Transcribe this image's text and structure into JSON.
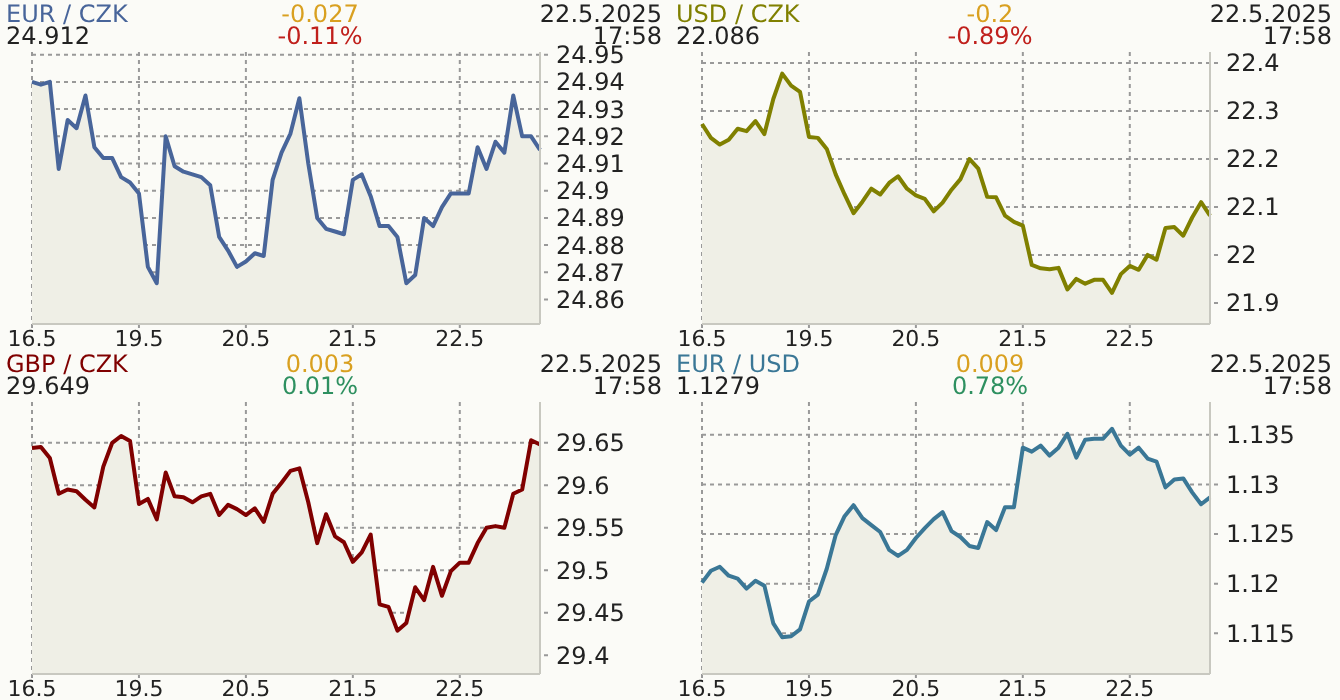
{
  "chart_data": [
    {
      "type": "area",
      "title": "EUR / CZK",
      "subtitle": "24.912",
      "annotations": [
        "-0.027",
        "-0.11%",
        "22.5.2025",
        "17:58"
      ],
      "categories": [
        "16.5",
        null,
        null,
        null,
        null,
        null,
        null,
        null,
        null,
        null,
        null,
        null,
        "19.5",
        null,
        null,
        null,
        null,
        null,
        null,
        null,
        null,
        null,
        null,
        null,
        "20.5",
        null,
        null,
        null,
        null,
        null,
        null,
        null,
        null,
        null,
        null,
        null,
        "21.5",
        null,
        null,
        null,
        null,
        null,
        null,
        null,
        null,
        null,
        null,
        null,
        "22.5",
        null,
        null,
        null,
        null,
        null,
        null,
        null,
        null,
        null
      ],
      "ylim": [
        24.851,
        24.951
      ],
      "yticks": [
        24.86,
        24.87,
        24.88,
        24.89,
        {
          "value": 24.9,
          "label": "24.9"
        },
        24.91,
        24.92,
        24.93,
        24.94,
        24.95
      ],
      "grid": true,
      "series": [
        {
          "color": "#48659a",
          "values": [
            24.94,
            24.939,
            24.94,
            24.908,
            24.926,
            24.923,
            24.935,
            24.916,
            24.912,
            24.912,
            24.905,
            24.903,
            24.899,
            24.872,
            24.866,
            24.92,
            24.909,
            24.907,
            24.906,
            24.905,
            24.902,
            24.883,
            24.878,
            24.872,
            24.874,
            24.877,
            24.876,
            24.904,
            24.914,
            24.921,
            24.934,
            24.91,
            24.89,
            24.886,
            24.885,
            24.884,
            24.904,
            24.906,
            24.898,
            24.887,
            24.887,
            24.883,
            24.866,
            24.869,
            24.89,
            24.887,
            24.894,
            24.899,
            24.899,
            24.899,
            24.916,
            24.908,
            24.918,
            24.914,
            24.935,
            24.92,
            24.92,
            24.915
          ]
        }
      ]
    },
    {
      "type": "area",
      "title": "USD / CZK",
      "subtitle": "22.086",
      "annotations": [
        "-0.2",
        "-0.89%",
        "22.5.2025",
        "17:58"
      ],
      "categories": [
        "16.5",
        null,
        null,
        null,
        null,
        null,
        null,
        null,
        null,
        null,
        null,
        null,
        "19.5",
        null,
        null,
        null,
        null,
        null,
        null,
        null,
        null,
        null,
        null,
        null,
        "20.5",
        null,
        null,
        null,
        null,
        null,
        null,
        null,
        null,
        null,
        null,
        null,
        "21.5",
        null,
        null,
        null,
        null,
        null,
        null,
        null,
        null,
        null,
        null,
        null,
        "22.5",
        null,
        null,
        null,
        null,
        null,
        null,
        null,
        null,
        null
      ],
      "ylim": [
        21.856,
        22.423
      ],
      "yticks": [
        21.9,
        {
          "value": 22,
          "label": "22"
        },
        22.1,
        22.2,
        22.3,
        22.4
      ],
      "grid": true,
      "series": [
        {
          "color": "#808000",
          "values": [
            22.273,
            22.244,
            22.23,
            22.24,
            22.263,
            22.258,
            22.279,
            22.252,
            22.325,
            22.378,
            22.353,
            22.34,
            22.246,
            22.244,
            22.221,
            22.168,
            22.126,
            22.087,
            22.111,
            22.138,
            22.126,
            22.15,
            22.164,
            22.138,
            22.124,
            22.117,
            22.091,
            22.109,
            22.136,
            22.158,
            22.2,
            22.18,
            22.121,
            22.12,
            22.082,
            22.069,
            22.061,
            21.979,
            21.972,
            21.97,
            21.973,
            21.928,
            21.95,
            21.94,
            21.948,
            21.948,
            21.921,
            21.96,
            21.977,
            21.969,
            22.0,
            21.99,
            22.056,
            22.058,
            22.04,
            22.078,
            22.11,
            22.082
          ]
        }
      ]
    },
    {
      "type": "area",
      "title": "GBP / CZK",
      "subtitle": "29.649",
      "annotations": [
        "0.003",
        "0.01%",
        "22.5.2025",
        "17:58"
      ],
      "categories": [
        "16.5",
        null,
        null,
        null,
        null,
        null,
        null,
        null,
        null,
        null,
        null,
        null,
        "19.5",
        null,
        null,
        null,
        null,
        null,
        null,
        null,
        null,
        null,
        null,
        null,
        "20.5",
        null,
        null,
        null,
        null,
        null,
        null,
        null,
        null,
        null,
        null,
        null,
        "21.5",
        null,
        null,
        null,
        null,
        null,
        null,
        null,
        null,
        null,
        null,
        null,
        "22.5",
        null,
        null,
        null,
        null,
        null,
        null,
        null,
        null,
        null
      ],
      "ylim": [
        29.378,
        29.698
      ],
      "yticks": [
        {
          "value": 29.4,
          "label": "29.4"
        },
        29.45,
        {
          "value": 29.5,
          "label": "29.5"
        },
        29.55,
        {
          "value": 29.6,
          "label": "29.6"
        },
        29.65
      ],
      "grid": true,
      "series": [
        {
          "color": "#800000",
          "values": [
            29.644,
            29.645,
            29.632,
            29.59,
            29.595,
            29.593,
            29.583,
            29.574,
            29.622,
            29.65,
            29.658,
            29.652,
            29.578,
            29.584,
            29.56,
            29.615,
            29.587,
            29.586,
            29.58,
            29.587,
            29.59,
            29.565,
            29.577,
            29.572,
            29.565,
            29.573,
            29.557,
            29.59,
            29.603,
            29.617,
            29.62,
            29.58,
            29.532,
            29.566,
            29.54,
            29.533,
            29.51,
            29.521,
            29.542,
            29.46,
            29.457,
            29.429,
            29.438,
            29.48,
            29.465,
            29.504,
            29.47,
            29.499,
            29.509,
            29.509,
            29.532,
            29.55,
            29.552,
            29.55,
            29.59,
            29.595,
            29.653,
            29.648
          ]
        }
      ]
    },
    {
      "type": "area",
      "title": "EUR / USD",
      "subtitle": "1.1279",
      "annotations": [
        "0.009",
        "0.78%",
        "22.5.2025",
        "17:58"
      ],
      "categories": [
        "16.5",
        null,
        null,
        null,
        null,
        null,
        null,
        null,
        null,
        null,
        null,
        null,
        "19.5",
        null,
        null,
        null,
        null,
        null,
        null,
        null,
        null,
        null,
        null,
        null,
        "20.5",
        null,
        null,
        null,
        null,
        null,
        null,
        null,
        null,
        null,
        null,
        null,
        "21.5",
        null,
        null,
        null,
        null,
        null,
        null,
        null,
        null,
        null,
        null,
        null,
        "22.5",
        null,
        null,
        null,
        null,
        null,
        null,
        null,
        null,
        null
      ],
      "ylim": [
        1.1109,
        1.1383
      ],
      "yticks": [
        1.115,
        {
          "value": 1.12,
          "label": "1.12"
        },
        1.125,
        {
          "value": 1.13,
          "label": "1.13"
        },
        1.135
      ],
      "grid": true,
      "series": [
        {
          "color": "#3a7796",
          "values": [
            1.1201,
            1.1213,
            1.1217,
            1.1208,
            1.1205,
            1.1195,
            1.1203,
            1.1198,
            1.116,
            1.1146,
            1.1147,
            1.1154,
            1.1182,
            1.1189,
            1.1215,
            1.1249,
            1.1268,
            1.1279,
            1.1266,
            1.1259,
            1.1252,
            1.1234,
            1.1228,
            1.1234,
            1.1246,
            1.1256,
            1.1265,
            1.1272,
            1.1253,
            1.1247,
            1.1238,
            1.1236,
            1.1262,
            1.1254,
            1.1277,
            1.1277,
            1.1337,
            1.1333,
            1.1339,
            1.1329,
            1.1337,
            1.1351,
            1.1327,
            1.1345,
            1.1346,
            1.1346,
            1.1356,
            1.1339,
            1.133,
            1.1337,
            1.1326,
            1.1323,
            1.1297,
            1.1305,
            1.1306,
            1.1292,
            1.128,
            1.1287
          ]
        }
      ]
    }
  ]
}
